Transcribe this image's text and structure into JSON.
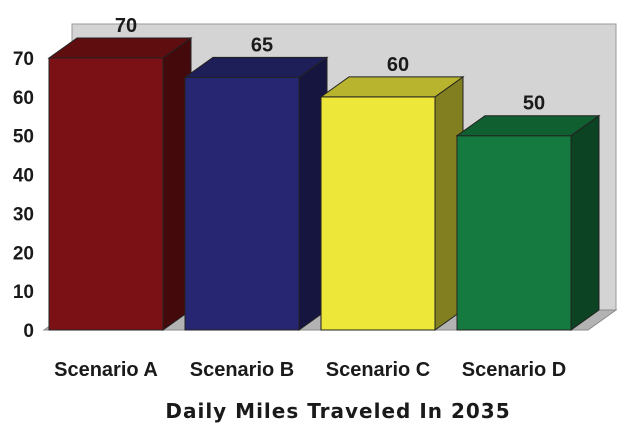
{
  "chart_data": {
    "type": "bar",
    "categories": [
      "Scenario A",
      "Scenario B",
      "Scenario C",
      "Scenario D"
    ],
    "values": [
      70,
      65,
      60,
      50
    ],
    "data_labels": [
      "70",
      "65",
      "60",
      "50"
    ],
    "xlabel": "Daily Miles Traveled In 2035",
    "ylabel": "",
    "ylim": [
      0,
      70
    ],
    "yticks": [
      "0",
      "10",
      "20",
      "30",
      "40",
      "50",
      "60",
      "70"
    ],
    "grid": false,
    "style": "3d",
    "colors": [
      "#7b1114",
      "#262672",
      "#ede73a",
      "#157a3f"
    ],
    "wall_color": "#d4d4d4",
    "floor_color": "#b3b3b3"
  }
}
